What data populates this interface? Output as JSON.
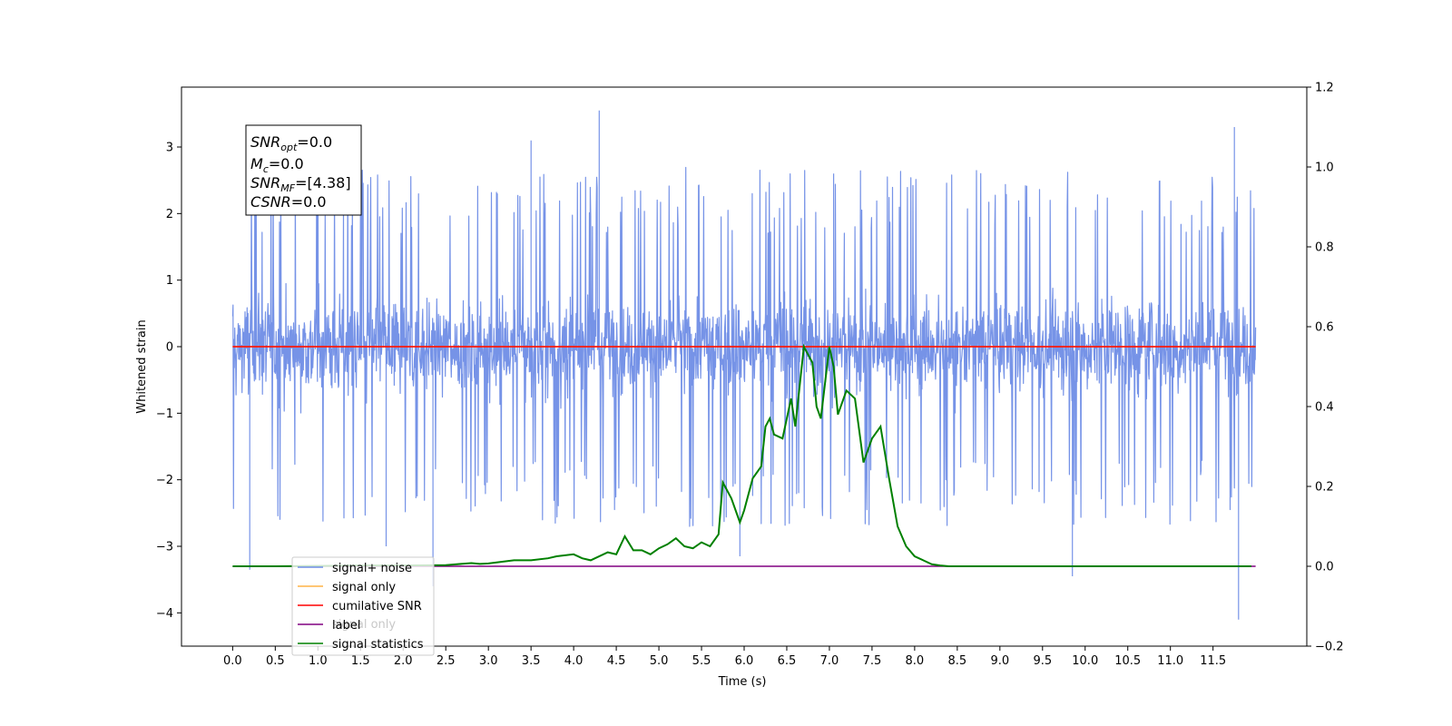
{
  "chart_data": {
    "type": "line",
    "xlabel": "Time (s)",
    "ylabel": "Whitened strain",
    "xlim": [
      -0.6,
      12.6
    ],
    "ylim": [
      -4.5,
      3.9
    ],
    "y2lim": [
      -0.2,
      1.2
    ],
    "x_ticks": [
      "0.0",
      "0.5",
      "1.0",
      "1.5",
      "2.0",
      "2.5",
      "3.0",
      "3.5",
      "4.0",
      "4.5",
      "5.0",
      "5.5",
      "6.0",
      "6.5",
      "7.0",
      "7.5",
      "8.0",
      "8.5",
      "9.0",
      "9.5",
      "10.0",
      "10.5",
      "11.0",
      "11.5"
    ],
    "y_ticks": [
      "3",
      "2",
      "1",
      "0",
      "−1",
      "−2",
      "−3",
      "−4"
    ],
    "y2_ticks": [
      "1.2",
      "1.0",
      "0.8",
      "0.6",
      "0.4",
      "0.2",
      "0.0",
      "−0.2"
    ],
    "info_box": {
      "snr_opt": {
        "base": "SNR",
        "sub": "opt",
        "value": "=0.0"
      },
      "mc": {
        "base": "M",
        "sub": "c",
        "value": "=0.0"
      },
      "snr_mf": {
        "base": "SNR",
        "sub": "MF",
        "value": "=[4.38]"
      },
      "csnr": {
        "base": "CSNR",
        "sub": "",
        "value": "=0.0"
      }
    },
    "legend": {
      "placement": "lower-left",
      "entries": [
        "signal+ noise",
        "signal only",
        "cumilative SNR",
        "label",
        "signal statistics"
      ],
      "hidden_text": "signal only"
    },
    "series": [
      {
        "name": "signal+ noise",
        "axis": "left",
        "color": "#6f8de6",
        "style": "noise",
        "x_range": [
          0,
          12
        ],
        "typical_range": [
          -1.7,
          1.7
        ],
        "spikes": [
          [
            0.2,
            -3.35
          ],
          [
            1.8,
            -3.0
          ],
          [
            2.35,
            -3.6
          ],
          [
            4.3,
            3.55
          ],
          [
            5.95,
            -3.15
          ],
          [
            9.85,
            -3.45
          ],
          [
            11.75,
            3.3
          ],
          [
            11.8,
            -4.1
          ],
          [
            7.05,
            2.6
          ],
          [
            3.5,
            3.1
          ],
          [
            1.3,
            2.9
          ]
        ]
      },
      {
        "name": "signal only",
        "axis": "left",
        "color": "#ffb347",
        "x": [
          0,
          12
        ],
        "y": [
          0,
          0
        ]
      },
      {
        "name": "cumilative SNR",
        "axis": "left",
        "color": "#ff0000",
        "x": [
          0,
          12
        ],
        "y": [
          0,
          0
        ]
      },
      {
        "name": "label",
        "axis": "right",
        "color": "#800080",
        "x": [
          0,
          12
        ],
        "y": [
          0,
          0
        ]
      },
      {
        "name": "signal statistics",
        "axis": "right",
        "color": "#008000",
        "x": [
          0,
          0.5,
          1.0,
          1.5,
          2.0,
          2.5,
          2.8,
          2.9,
          3.0,
          3.3,
          3.5,
          3.7,
          3.8,
          4.0,
          4.1,
          4.2,
          4.4,
          4.5,
          4.6,
          4.7,
          4.8,
          4.9,
          5.0,
          5.1,
          5.2,
          5.3,
          5.4,
          5.5,
          5.6,
          5.7,
          5.75,
          5.85,
          5.95,
          6.0,
          6.1,
          6.2,
          6.25,
          6.3,
          6.35,
          6.45,
          6.55,
          6.6,
          6.7,
          6.8,
          6.85,
          6.9,
          7.0,
          7.05,
          7.1,
          7.2,
          7.3,
          7.4,
          7.5,
          7.6,
          7.7,
          7.8,
          7.9,
          8.0,
          8.1,
          8.2,
          8.3,
          8.4,
          9.0,
          10.0,
          11.0,
          11.95
        ],
        "y": [
          0,
          0,
          0.001,
          0.002,
          0.002,
          0.003,
          0.008,
          0.006,
          0.007,
          0.015,
          0.015,
          0.02,
          0.025,
          0.03,
          0.02,
          0.015,
          0.035,
          0.03,
          0.075,
          0.04,
          0.04,
          0.03,
          0.045,
          0.055,
          0.07,
          0.05,
          0.045,
          0.06,
          0.05,
          0.08,
          0.21,
          0.17,
          0.11,
          0.14,
          0.22,
          0.25,
          0.35,
          0.37,
          0.33,
          0.32,
          0.42,
          0.35,
          0.55,
          0.51,
          0.4,
          0.37,
          0.55,
          0.5,
          0.38,
          0.44,
          0.42,
          0.26,
          0.32,
          0.35,
          0.22,
          0.1,
          0.05,
          0.025,
          0.015,
          0.005,
          0.002,
          0,
          0,
          0,
          0,
          0
        ]
      }
    ]
  }
}
